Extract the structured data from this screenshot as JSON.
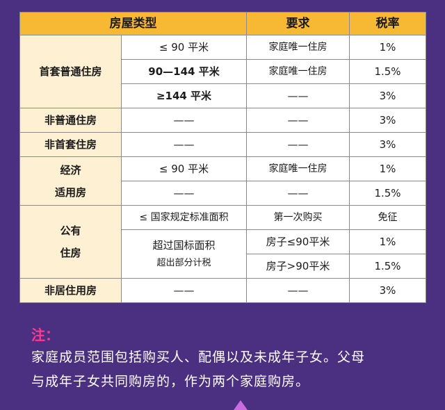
{
  "table": {
    "headers": {
      "type": "房屋类型",
      "requirement": "要求",
      "rate": "税率"
    },
    "first_home": {
      "category": "首套普通住房",
      "rows": [
        {
          "area": "≤ 90 平米",
          "requirement": "家庭唯一住房",
          "rate": "1%"
        },
        {
          "area": "90—144 平米",
          "requirement": "家庭唯一住房",
          "rate": "1.5%"
        },
        {
          "area": "≥144 平米",
          "requirement": "——",
          "rate": "3%"
        }
      ]
    },
    "non_ordinary": {
      "category": "非普通住房",
      "area": "——",
      "requirement": "——",
      "rate": "3%"
    },
    "non_first": {
      "category": "非首套住房",
      "area": "——",
      "requirement": "——",
      "rate": "3%"
    },
    "affordable": {
      "category_line1": "经济",
      "category_line2": "适用房",
      "rows": [
        {
          "area": "≤ 90 平米",
          "requirement": "家庭唯一住房",
          "rate": "1%"
        },
        {
          "area": "——",
          "requirement": "——",
          "rate": "1.5%"
        }
      ]
    },
    "public_housing": {
      "category_line1": "公有",
      "category_line2": "住房",
      "row1": {
        "area": "≤ 国家规定标准面积",
        "requirement": "第一次购买",
        "rate": "免征"
      },
      "exceed_line1": "超过国标面积",
      "exceed_line2": "超出部分计税",
      "row2": {
        "requirement": "房子≤90平米",
        "rate": "1%"
      },
      "row3": {
        "requirement": "房子>90平米",
        "rate": "1.5%"
      }
    },
    "non_residential": {
      "category": "非居住用房",
      "area": "——",
      "requirement": "——",
      "rate": "3%"
    }
  },
  "note": {
    "title": "注：",
    "line1": "家庭成员范围包括购买人、配偶以及未成年子女。父母",
    "line2": "与成年子女共同购房的，作为两个家庭购房。"
  },
  "colors": {
    "background": "#4b2f80",
    "header": "#f7b833",
    "category_cell": "#fdf0d3",
    "note_title": "#ff3b8f"
  }
}
